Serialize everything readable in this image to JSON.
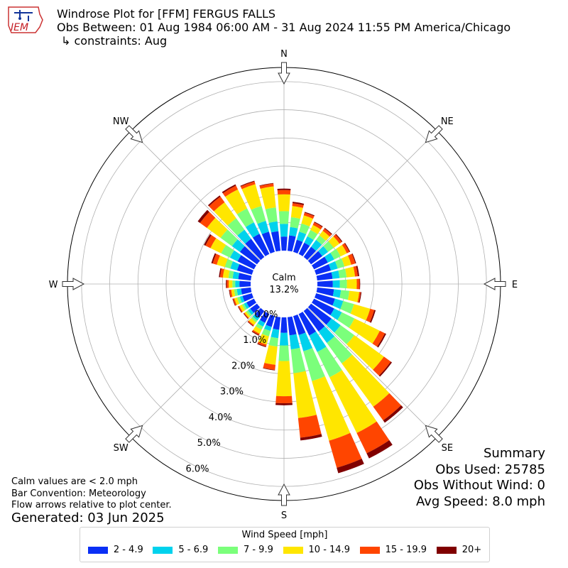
{
  "header": {
    "title": "Windrose Plot for [FFM] FERGUS FALLS",
    "obs_between": "Obs Between: 01 Aug 1984 06:00 AM - 31 Aug 2024 11:55 PM America/Chicago",
    "constraints": "↳ constraints: Aug",
    "logo_text": "IEM"
  },
  "notes": {
    "calm_note": "Calm values are < 2.0 mph",
    "bar_convention": "Bar Convention: Meteorology",
    "flow_arrows": "Flow arrows relative to plot center.",
    "generated": "Generated: 03 Jun 2025"
  },
  "summary": {
    "title": "Summary",
    "obs_used": "Obs Used: 25785",
    "obs_without_wind": "Obs Without Wind: 0",
    "avg_speed": "Avg Speed: 8.0 mph"
  },
  "legend": {
    "title": "Wind Speed [mph]",
    "items": [
      {
        "label": "2 - 4.9",
        "color": "#0a2ff5"
      },
      {
        "label": "5 - 6.9",
        "color": "#00d2ed"
      },
      {
        "label": "7 - 9.9",
        "color": "#7bff7b"
      },
      {
        "label": "10 - 14.9",
        "color": "#ffe600"
      },
      {
        "label": "15 - 19.9",
        "color": "#ff4500"
      },
      {
        "label": "20+",
        "color": "#800000"
      }
    ]
  },
  "chart_data": {
    "type": "windrose",
    "calm_label": "Calm",
    "calm_percent": "13.2%",
    "radial_ticks": [
      "0.0%",
      "1.0%",
      "2.0%",
      "3.0%",
      "4.0%",
      "5.0%",
      "6.0%"
    ],
    "radial_max": 6.5,
    "compass_labels": [
      "N",
      "NE",
      "E",
      "SE",
      "S",
      "SW",
      "W",
      "NW"
    ],
    "speed_bins": [
      "2 - 4.9",
      "5 - 6.9",
      "7 - 9.9",
      "10 - 14.9",
      "15 - 19.9",
      "20+"
    ],
    "directions_deg": [
      0,
      10,
      20,
      30,
      40,
      50,
      60,
      70,
      80,
      90,
      100,
      110,
      120,
      130,
      140,
      150,
      160,
      170,
      180,
      190,
      200,
      210,
      220,
      230,
      240,
      250,
      260,
      270,
      280,
      290,
      300,
      310,
      320,
      330,
      340,
      350
    ],
    "cumulative_percent": [
      [
        0.5,
        0.95,
        1.4,
        2.0,
        2.15,
        2.2
      ],
      [
        0.55,
        0.85,
        1.2,
        1.6,
        1.7,
        1.75
      ],
      [
        0.45,
        0.75,
        1.05,
        1.35,
        1.45,
        1.48
      ],
      [
        0.45,
        0.7,
        0.95,
        1.15,
        1.25,
        1.28
      ],
      [
        0.45,
        0.75,
        0.95,
        1.15,
        1.25,
        1.28
      ],
      [
        0.5,
        0.75,
        1.0,
        1.25,
        1.35,
        1.38
      ],
      [
        0.55,
        0.8,
        1.05,
        1.3,
        1.4,
        1.43
      ],
      [
        0.55,
        0.8,
        1.05,
        1.3,
        1.45,
        1.48
      ],
      [
        0.55,
        0.8,
        1.05,
        1.35,
        1.45,
        1.5
      ],
      [
        0.55,
        0.8,
        1.05,
        1.4,
        1.5,
        1.52
      ],
      [
        0.6,
        0.85,
        1.15,
        1.5,
        1.55,
        1.58
      ],
      [
        0.7,
        1.0,
        1.4,
        2.0,
        2.15,
        2.2
      ],
      [
        0.8,
        1.1,
        1.6,
        2.6,
        2.8,
        2.85
      ],
      [
        0.9,
        1.3,
        1.9,
        3.2,
        3.5,
        3.55
      ],
      [
        0.9,
        1.4,
        2.3,
        4.2,
        4.8,
        4.9
      ],
      [
        0.85,
        1.5,
        2.5,
        4.7,
        5.5,
        5.7
      ],
      [
        0.7,
        1.3,
        2.4,
        4.6,
        5.6,
        5.8
      ],
      [
        0.65,
        1.15,
        2.0,
        3.6,
        4.3,
        4.4
      ],
      [
        0.55,
        1.0,
        1.55,
        2.8,
        3.05,
        3.12
      ],
      [
        0.45,
        0.75,
        1.05,
        1.7,
        1.88,
        1.9
      ],
      [
        0.4,
        0.55,
        0.75,
        1.05,
        1.12,
        1.15
      ],
      [
        0.35,
        0.5,
        0.62,
        0.78,
        0.83,
        0.86
      ],
      [
        0.3,
        0.42,
        0.5,
        0.62,
        0.66,
        0.68
      ],
      [
        0.3,
        0.4,
        0.48,
        0.55,
        0.58,
        0.6
      ],
      [
        0.3,
        0.4,
        0.48,
        0.58,
        0.62,
        0.64
      ],
      [
        0.35,
        0.45,
        0.55,
        0.65,
        0.7,
        0.72
      ],
      [
        0.35,
        0.5,
        0.6,
        0.7,
        0.76,
        0.78
      ],
      [
        0.4,
        0.55,
        0.65,
        0.78,
        0.85,
        0.88
      ],
      [
        0.45,
        0.65,
        0.8,
        1.0,
        1.1,
        1.14
      ],
      [
        0.55,
        0.8,
        1.0,
        1.3,
        1.45,
        1.5
      ],
      [
        0.65,
        0.95,
        1.3,
        1.72,
        1.92,
        1.98
      ],
      [
        0.75,
        1.1,
        1.6,
        2.2,
        2.5,
        2.6
      ],
      [
        0.8,
        1.2,
        1.7,
        2.4,
        2.65,
        2.7
      ],
      [
        0.8,
        1.25,
        1.8,
        2.55,
        2.7,
        2.75
      ],
      [
        0.75,
        1.15,
        1.7,
        2.5,
        2.6,
        2.63
      ],
      [
        0.7,
        1.05,
        1.55,
        2.3,
        2.4,
        2.42
      ]
    ]
  }
}
